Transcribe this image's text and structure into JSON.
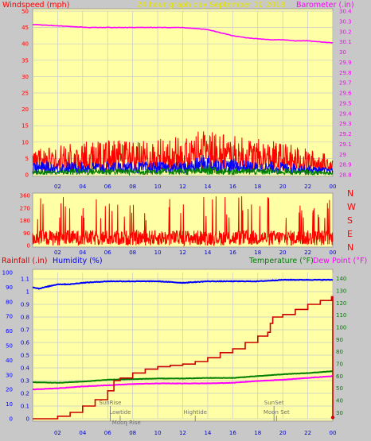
{
  "colors": {
    "panel": "#ffffa6",
    "background": "#c8c8c8",
    "windspeed": "#ff0000",
    "gust": "#0000ff",
    "wind_avg": "#008000",
    "barometer": "#ff00ff",
    "title": "#e6e600",
    "humidity": "#0000ff",
    "temperature": "#008000",
    "dew_point": "#ff00ff",
    "rainfall": "#cc0000",
    "almanac": "#707070",
    "grid": "#c8c8c8"
  },
  "chart_data": [
    {
      "id": "wind_baro",
      "type": "line",
      "title": "24 hour graph day   September 10 2018",
      "ylabel_left": "Windspeed (mph)",
      "ylabel_right": "Barometer (.in)",
      "x_ticks": [
        "02",
        "04",
        "06",
        "08",
        "10",
        "12",
        "14",
        "16",
        "18",
        "20",
        "22",
        "00"
      ],
      "y_left_ticks": [
        "0",
        "5",
        "10",
        "15",
        "20",
        "25",
        "30",
        "35",
        "40",
        "45",
        "50"
      ],
      "y_right_ticks": [
        "28.8",
        "28.9",
        "29",
        "29.1",
        "29.2",
        "29.3",
        "29.4",
        "29.5",
        "29.6",
        "29.7",
        "29.8",
        "29.9",
        "30",
        "30.1",
        "30.2",
        "30.3",
        "30.4"
      ],
      "ylim_left": [
        0,
        50
      ],
      "ylim_right": [
        28.8,
        30.4
      ],
      "xlim": [
        0,
        24
      ],
      "grid": true,
      "barometer": {
        "x": [
          0,
          1.5,
          3,
          4.5,
          6,
          8,
          10,
          12,
          13,
          14,
          15,
          16,
          17,
          18,
          19,
          20,
          21,
          22,
          23,
          24
        ],
        "y": [
          30.27,
          30.26,
          30.25,
          30.24,
          30.24,
          30.24,
          30.24,
          30.24,
          30.23,
          30.22,
          30.19,
          30.16,
          30.14,
          30.13,
          30.12,
          30.12,
          30.11,
          30.11,
          30.1,
          30.09
        ]
      },
      "wind_envelope": {
        "x": [
          0,
          2,
          4,
          6,
          8,
          10,
          12,
          13,
          14,
          15,
          16,
          18,
          20,
          22,
          24
        ],
        "peak": [
          8,
          9,
          10,
          11,
          10,
          11,
          12,
          13,
          19,
          14,
          12,
          11,
          10,
          8,
          6
        ],
        "gust": [
          4,
          4,
          4,
          4,
          4,
          4,
          4,
          5,
          7,
          5,
          5,
          4,
          4,
          3,
          2
        ],
        "avg": [
          1.5,
          1.5,
          2,
          2,
          2,
          2,
          2,
          2,
          3,
          2,
          2,
          2,
          2,
          1.5,
          1
        ]
      }
    },
    {
      "id": "wind_direction",
      "type": "line",
      "x_ticks": [
        "02",
        "04",
        "06",
        "08",
        "10",
        "12",
        "14",
        "16",
        "18",
        "20",
        "22",
        "00"
      ],
      "y_ticks": [
        "0",
        "90",
        "180",
        "270",
        "360"
      ],
      "compass": [
        "N",
        "W",
        "S",
        "E",
        "N"
      ],
      "ylim": [
        0,
        360
      ],
      "xlim": [
        0,
        24
      ],
      "base_range": [
        0,
        110
      ]
    },
    {
      "id": "temp_hum_rain",
      "type": "line",
      "ylabel_rain": "Rainfall (.in)",
      "ylabel_humidity": "Humidity (%)",
      "ylabel_temperature": "Temperature (°F)",
      "ylabel_dewpoint": "Dew Point (°F)",
      "x_ticks": [
        "02",
        "04",
        "06",
        "08",
        "10",
        "12",
        "14",
        "16",
        "18",
        "20",
        "22",
        "00"
      ],
      "humidity_ticks": [
        "0",
        "10",
        "20",
        "30",
        "40",
        "50",
        "60",
        "70",
        "80",
        "90",
        "100"
      ],
      "rain_ticks": [
        "0",
        "0.1",
        "0.2",
        "0.3",
        "0.4",
        "0.5",
        "0.6",
        "0.7",
        "0.8",
        "0.9",
        "1",
        "1.1"
      ],
      "temp_ticks": [
        "30",
        "40",
        "50",
        "60",
        "70",
        "80",
        "90",
        "100",
        "110",
        "120",
        "130",
        "140"
      ],
      "ylim_rain": [
        0,
        1.15
      ],
      "ylim_humidity": [
        0,
        100
      ],
      "ylim_temp": [
        25,
        145
      ],
      "xlim": [
        0,
        24
      ],
      "grid": true,
      "humidity": {
        "x": [
          0,
          0.5,
          1,
          1.5,
          2,
          3,
          4,
          6,
          8,
          10,
          12,
          14,
          16,
          18,
          20,
          22,
          23,
          24
        ],
        "y": [
          90,
          89,
          90,
          91,
          92,
          92,
          93,
          94,
          94,
          94,
          93,
          94,
          94,
          94,
          95,
          95,
          95,
          95
        ]
      },
      "temperature": {
        "x": [
          0,
          2,
          4,
          6,
          8,
          10,
          12,
          14,
          16,
          18,
          20,
          22,
          24
        ],
        "y": [
          55,
          54.5,
          55.5,
          57,
          57.5,
          58,
          58,
          58.5,
          58.5,
          60,
          61.5,
          62.5,
          64
        ]
      },
      "dewpoint": {
        "x": [
          0,
          2,
          4,
          6,
          8,
          10,
          12,
          14,
          16,
          18,
          20,
          22,
          24
        ],
        "y": [
          49,
          50,
          51.5,
          52.5,
          53.5,
          54,
          54,
          54,
          54.5,
          56,
          57,
          58.5,
          60
        ]
      },
      "rainfall": {
        "x": [
          0,
          1,
          2,
          3,
          4,
          5,
          6,
          6.5,
          7,
          8,
          9,
          10,
          11,
          12,
          13,
          14,
          15,
          16,
          17,
          18,
          18.8,
          19,
          19.2,
          20,
          21,
          22,
          23,
          23.9,
          24,
          24
        ],
        "y": [
          0,
          0,
          0.02,
          0.05,
          0.1,
          0.15,
          0.22,
          0.3,
          0.32,
          0.36,
          0.39,
          0.41,
          0.42,
          0.43,
          0.45,
          0.48,
          0.52,
          0.55,
          0.6,
          0.65,
          0.68,
          0.75,
          0.8,
          0.82,
          0.86,
          0.9,
          0.93,
          0.96,
          0.96,
          0.01
        ]
      },
      "almanac": [
        {
          "label": "SunRise",
          "hour": 6.2,
          "row": 0
        },
        {
          "label": "Lowtide",
          "hour": 7.0,
          "row": 1
        },
        {
          "label": "Moon Rise",
          "hour": 7.5,
          "row": 2
        },
        {
          "label": "Hightide",
          "hour": 13.0,
          "row": 1
        },
        {
          "label": "SunSet",
          "hour": 19.3,
          "row": 0
        },
        {
          "label": "Moon Set",
          "hour": 19.5,
          "row": 1
        }
      ]
    }
  ]
}
